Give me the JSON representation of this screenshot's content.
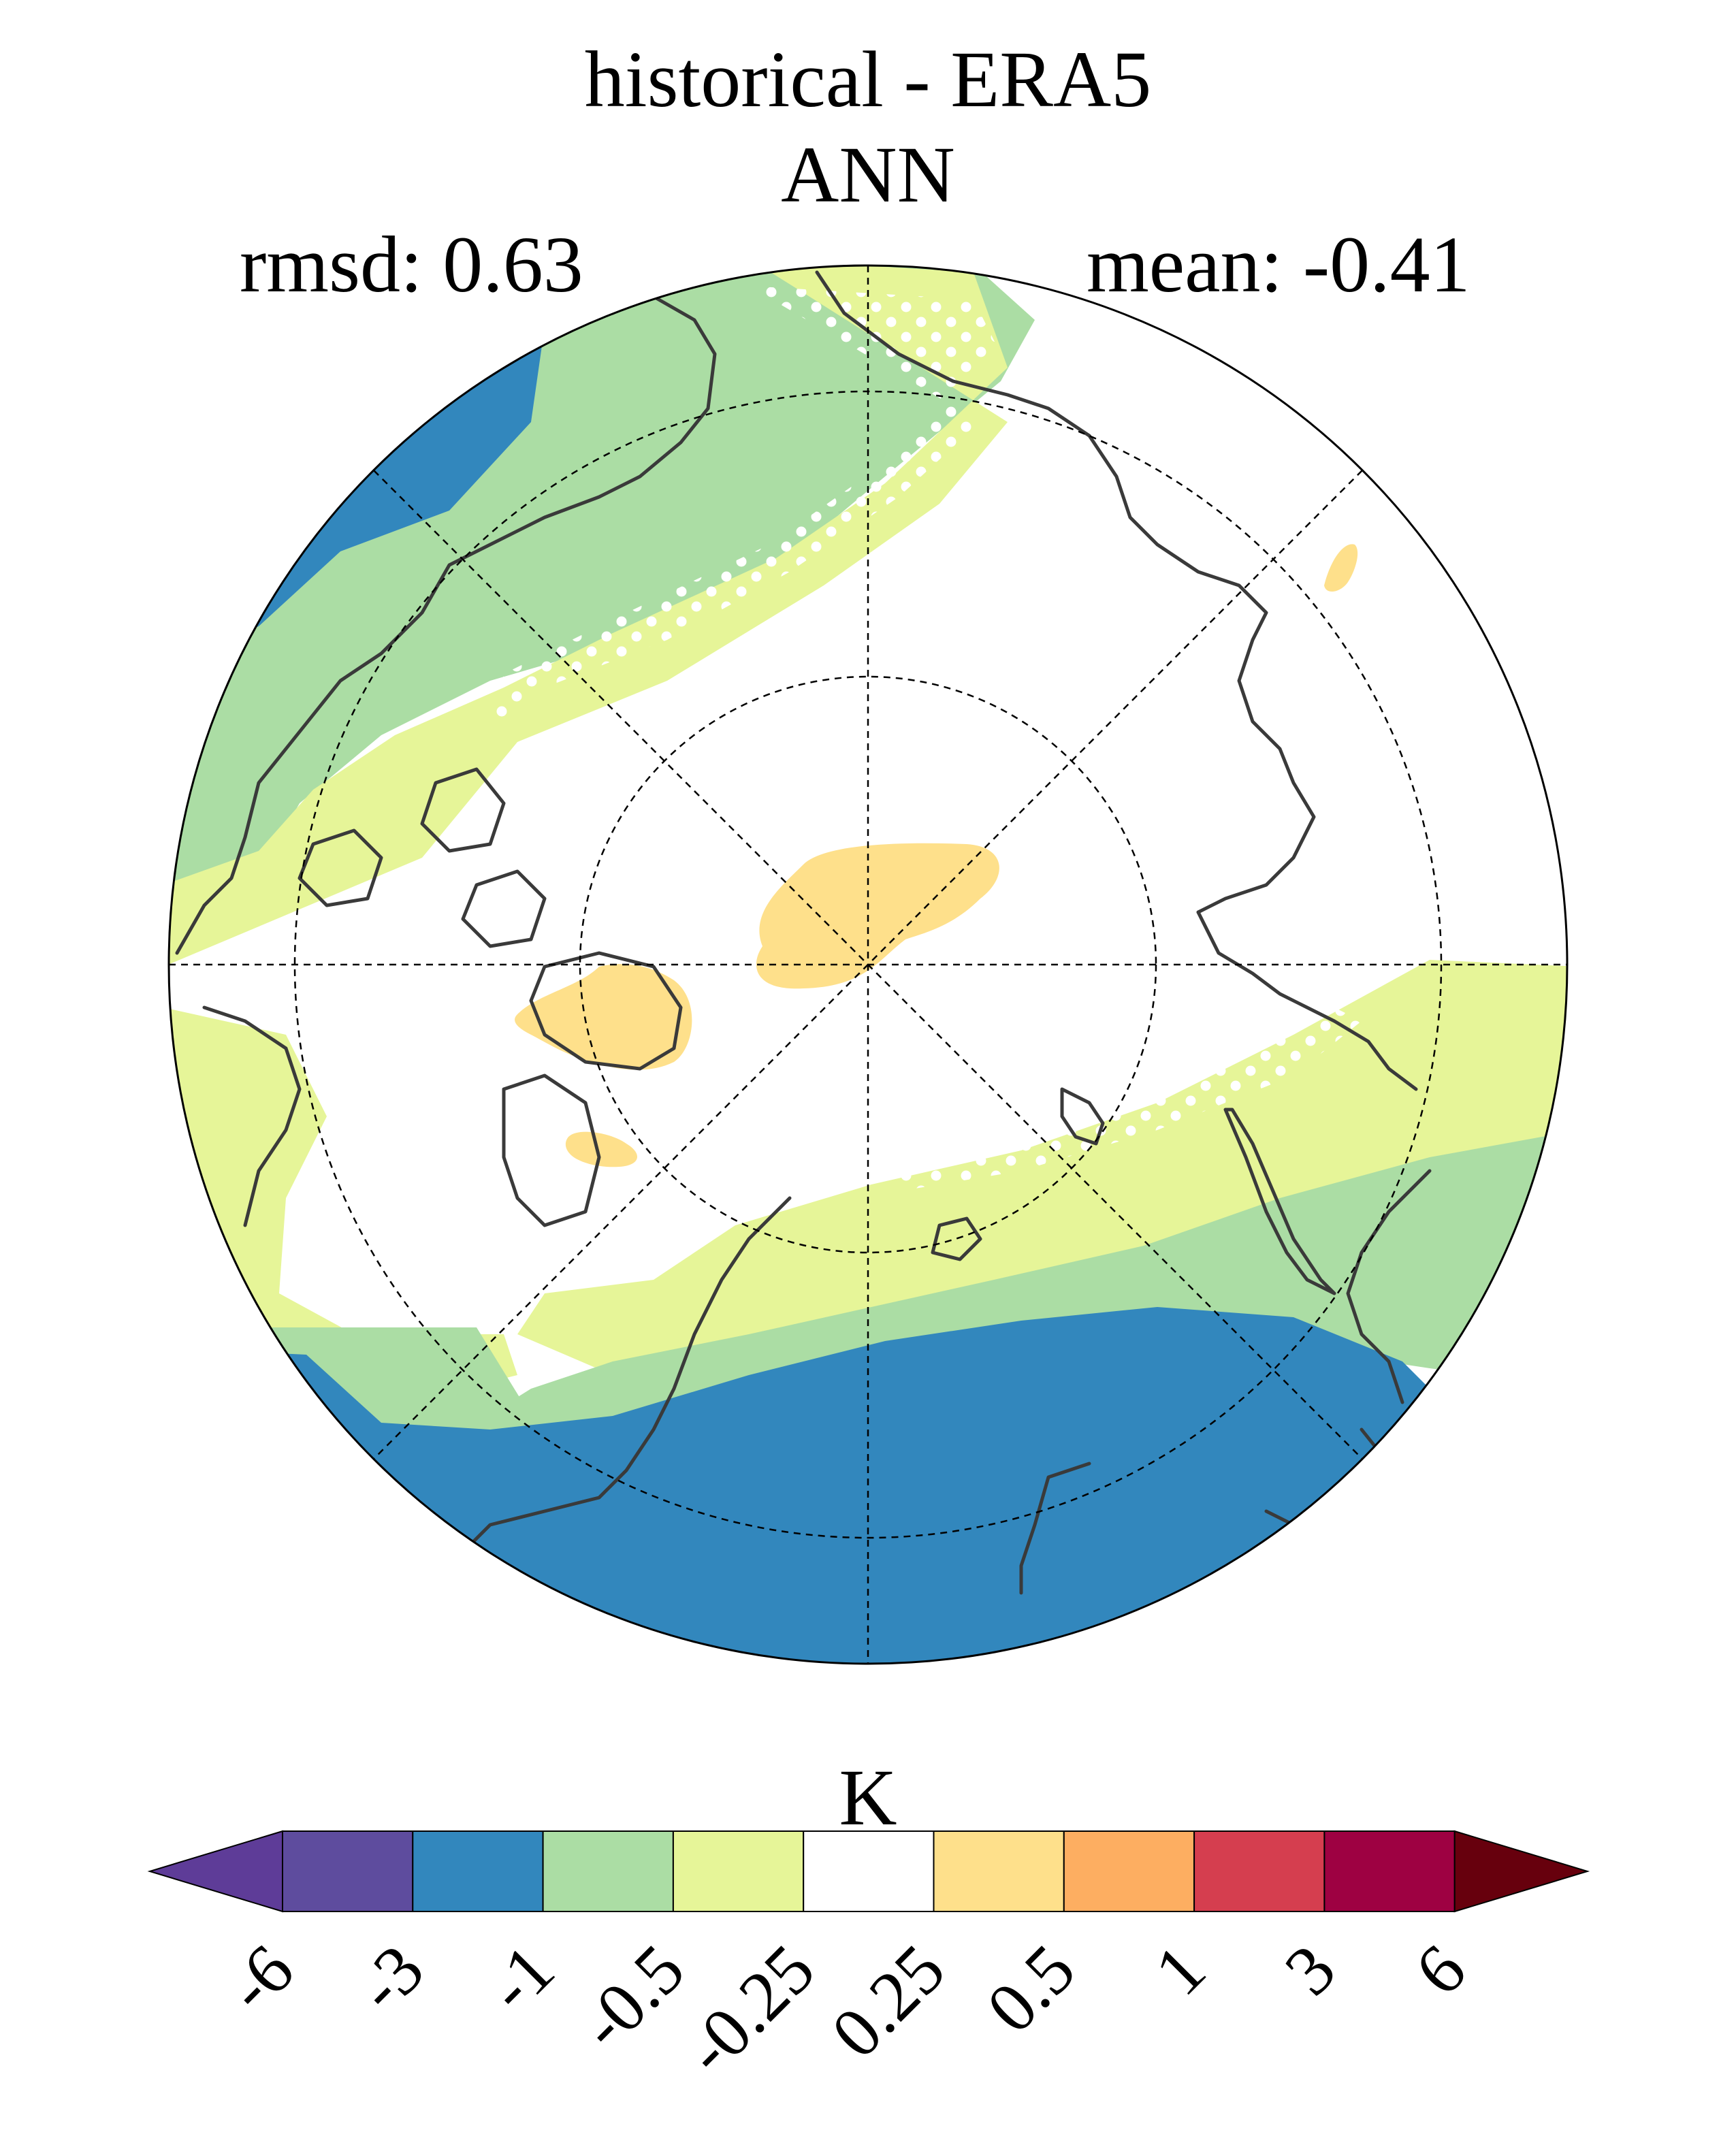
{
  "title": "historical - ERA5",
  "subtitle": "ANN",
  "stats": {
    "rmsd": "rmsd: 0.63",
    "mean": "mean: -0.41"
  },
  "map": {
    "projection": "north-polar-stereographic",
    "graticule": "dashed",
    "coastlines": true,
    "stippling": "white dots"
  },
  "colorbar": {
    "unit_label": "K",
    "extend": "both",
    "bins": [
      "#5e4c9e",
      "#3287bd",
      "#abdda4",
      "#e6f598",
      "#ffffff",
      "#fee08b",
      "#fdae61",
      "#d53e4f",
      "#9e0142"
    ],
    "under_color": "#5e3c98",
    "over_color": "#67000d",
    "ticks": [
      "-6",
      "-3",
      "-1",
      "-0.5",
      "-0.25",
      "0.25",
      "0.5",
      "1",
      "3",
      "6"
    ]
  },
  "colors": {
    "blue": "#3287bd",
    "green": "#abdda4",
    "lightgreen": "#e6f598",
    "white": "#ffffff",
    "yellow": "#fee08b",
    "coast": "#3a3a3a"
  }
}
